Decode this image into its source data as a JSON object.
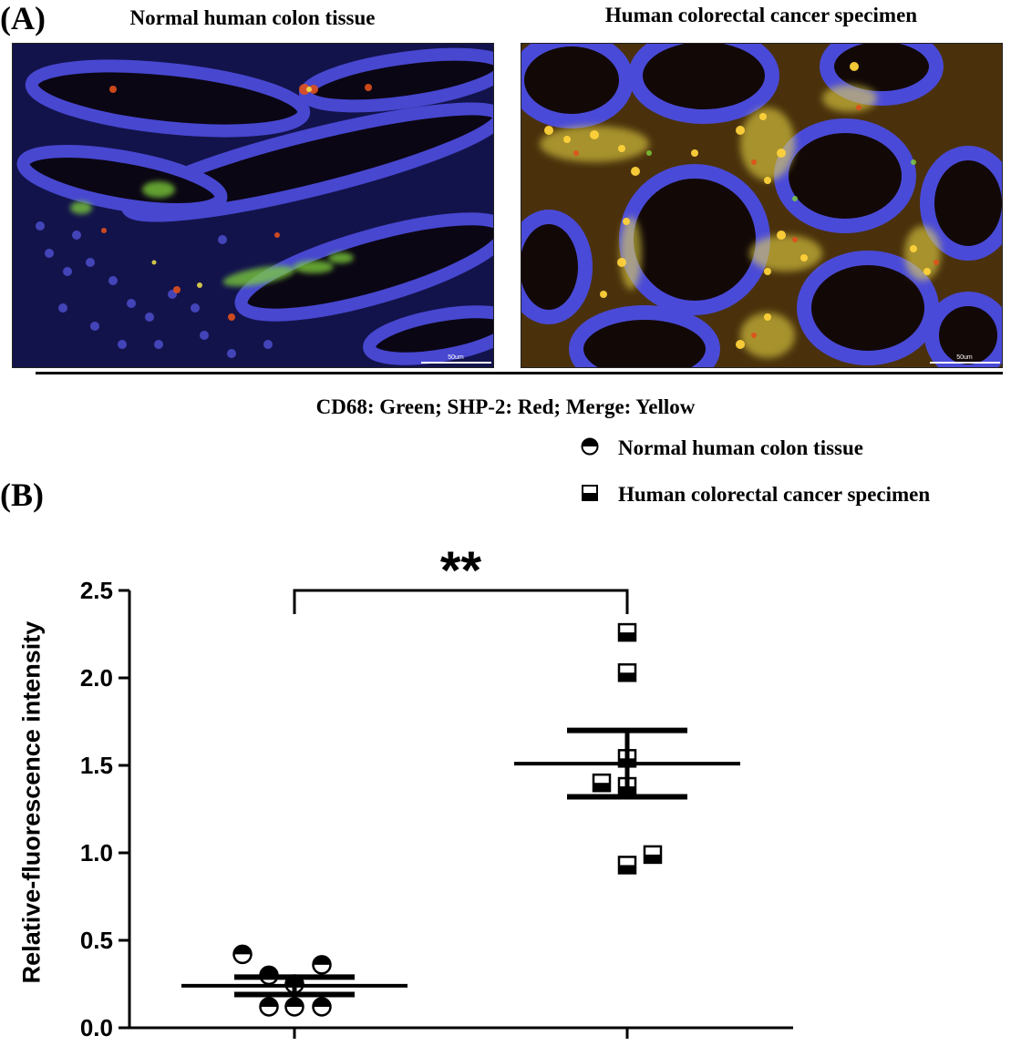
{
  "panel_a": {
    "letter": "(A)",
    "left_title": "Normal human colon tissue",
    "right_title": "Human colorectal cancer specimen",
    "scale_bar_label": "50um",
    "caption": "CD68: Green; SHP-2: Red; Merge: Yellow"
  },
  "panel_b": {
    "letter": "(B)",
    "legend": [
      {
        "label": "Normal human colon tissue",
        "marker": "half-filled-circle-icon"
      },
      {
        "label": "Human colorectal cancer specimen",
        "marker": "half-filled-square-icon"
      }
    ],
    "significance": "**"
  },
  "colors": {
    "tissue_background": "#0a0814",
    "nuclei_blue": "#4a4ad8",
    "cd68_green": "#7fd23a",
    "shp2_red": "#e0501c",
    "merge_yellow": "#f3e24a"
  },
  "chart_data": {
    "type": "scatter",
    "title": "",
    "xlabel": "",
    "ylabel": "Relative-fluorescence intensity",
    "ylim": [
      0,
      2.5
    ],
    "yticks": [
      0.0,
      0.5,
      1.0,
      1.5,
      2.0,
      2.5
    ],
    "ytick_labels": [
      "0.0",
      "0.5",
      "1.0",
      "1.5",
      "2.0",
      "2.5"
    ],
    "grid": false,
    "legend_position": "top-right",
    "categories": [
      "Normal human colon tissue",
      "Human colorectal cancer specimen"
    ],
    "series": [
      {
        "name": "Normal human colon tissue",
        "marker": "half-filled-circle",
        "values": [
          0.42,
          0.3,
          0.25,
          0.36,
          0.12,
          0.12,
          0.12
        ],
        "mean": 0.24,
        "sem_upper": 0.29,
        "sem_lower": 0.19
      },
      {
        "name": "Human colorectal cancer specimen",
        "marker": "half-filled-square",
        "values": [
          2.26,
          2.03,
          1.54,
          1.4,
          1.38,
          0.93,
          0.99
        ],
        "mean": 1.51,
        "sem_upper": 1.7,
        "sem_lower": 1.32
      }
    ]
  }
}
